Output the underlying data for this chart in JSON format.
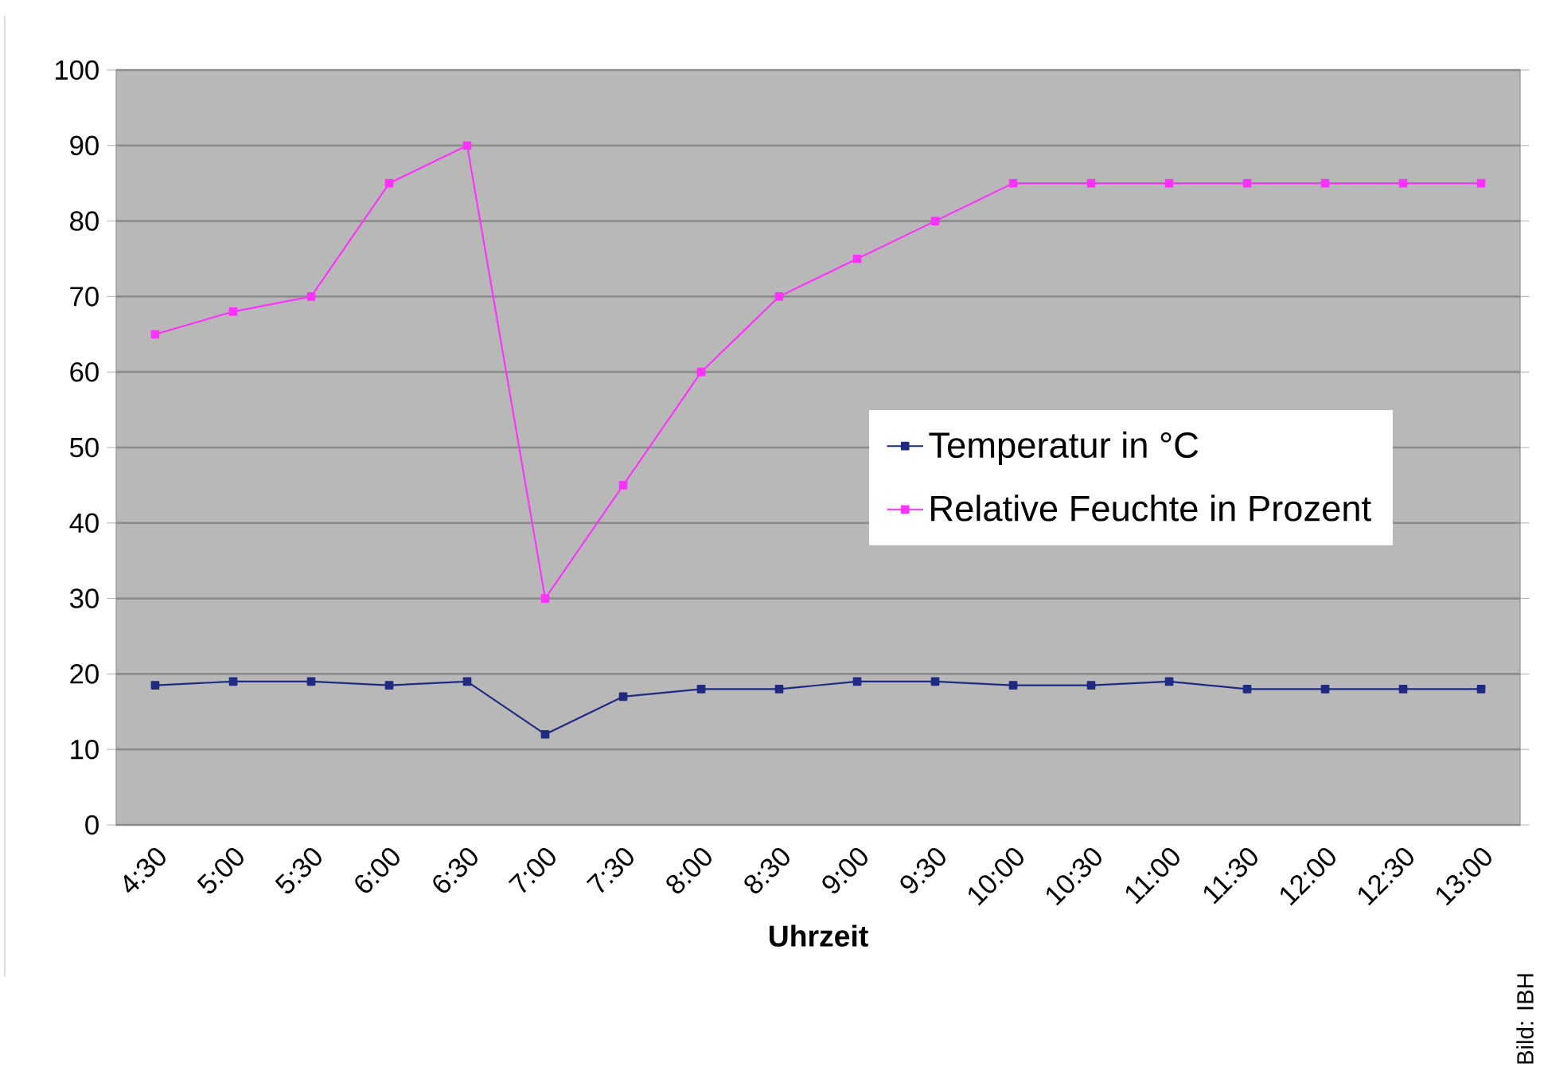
{
  "chart_data": {
    "type": "line",
    "xlabel": "Uhrzeit",
    "categories": [
      "4:30",
      "5:00",
      "5:30",
      "6:00",
      "6:30",
      "7:00",
      "7:30",
      "8:00",
      "8:30",
      "9:00",
      "9:30",
      "10:00",
      "10:30",
      "11:00",
      "11:30",
      "12:00",
      "12:30",
      "13:00"
    ],
    "series": [
      {
        "name": "Temperatur in °C",
        "color": "#1f2a80",
        "values": [
          18.5,
          19,
          19,
          18.5,
          19,
          12,
          17,
          18,
          18,
          19,
          19,
          18.5,
          18.5,
          19,
          18,
          18,
          18,
          18
        ]
      },
      {
        "name": "Relative Feuchte in Prozent",
        "color": "#ff33ff",
        "values": [
          65,
          68,
          70,
          85,
          90,
          30,
          45,
          60,
          70,
          75,
          80,
          85,
          85,
          85,
          85,
          85,
          85,
          85
        ]
      }
    ],
    "ylim": [
      0,
      100
    ],
    "yticks": [
      0,
      10,
      20,
      30,
      40,
      50,
      60,
      70,
      80,
      90,
      100
    ],
    "grid": "y",
    "legend": "right",
    "marker": "square",
    "line_style": "solid",
    "annotations": [
      "Bild: IBH"
    ]
  }
}
